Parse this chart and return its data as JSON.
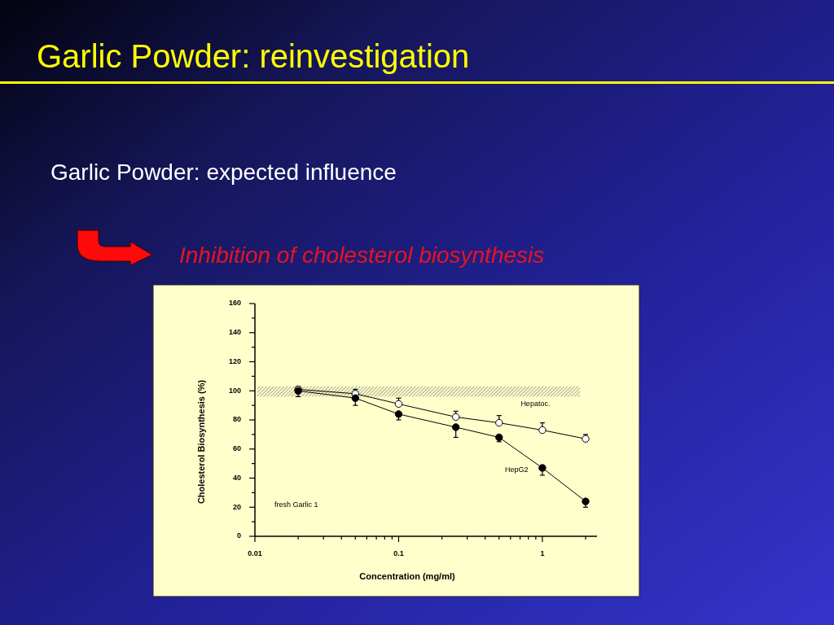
{
  "chart_data": {
    "type": "line",
    "title": "Garlic Powder: reinvestigation",
    "subtitle": "Garlic Powder: expected influence",
    "xlabel": "Concentration (mg/ml)",
    "ylabel": "Cholesterol Biosynthesis (%)",
    "annotations": [
      "Inhibition of cholesterol biosynthesis",
      "fresh Garlic 1"
    ],
    "x": [
      0.02,
      0.05,
      0.1,
      0.25,
      0.5,
      1,
      2
    ],
    "series": [
      {
        "name": "Hepatoc.",
        "color": "#ffffff",
        "values": [
          101,
          98,
          91,
          82,
          78,
          73,
          67
        ],
        "errors": [
          [
            101,
            103
          ],
          [
            98,
            101
          ],
          [
            91,
            95
          ],
          [
            82,
            86
          ],
          [
            78,
            83
          ],
          [
            73,
            78
          ],
          [
            67,
            70
          ]
        ]
      },
      {
        "name": "HepG2",
        "color": "#000000",
        "values": [
          100,
          95,
          84,
          75,
          68,
          47,
          24
        ],
        "errors": [
          [
            96,
            100
          ],
          [
            90,
            95
          ],
          [
            80,
            84
          ],
          [
            68,
            75
          ],
          [
            65,
            68
          ],
          [
            42,
            47
          ],
          [
            20,
            24
          ]
        ]
      }
    ],
    "log": "x",
    "xlim": [
      0.01,
      2.4
    ],
    "xticks": [
      0.01,
      {
        "value": 0.02,
        "label": null
      },
      {
        "value": 0.03,
        "label": null
      },
      {
        "value": 0.04,
        "label": null
      },
      {
        "value": 0.05,
        "label": null
      },
      {
        "value": 0.06,
        "label": null
      },
      {
        "value": 0.07,
        "label": null
      },
      {
        "value": 0.08,
        "label": null
      },
      {
        "value": 0.09,
        "label": null
      },
      0.1,
      {
        "value": 0.2,
        "label": null
      },
      {
        "value": 0.3,
        "label": null
      },
      {
        "value": 0.4,
        "label": null
      },
      {
        "value": 0.5,
        "label": null
      },
      {
        "value": 0.6,
        "label": null
      },
      {
        "value": 0.7,
        "label": null
      },
      {
        "value": 0.8,
        "label": null
      },
      {
        "value": 0.9,
        "label": null
      },
      1,
      {
        "value": 2,
        "label": null
      }
    ],
    "ylim": [
      0,
      160
    ],
    "yticks": [
      0,
      {
        "value": 10,
        "label": null
      },
      20,
      {
        "value": 30,
        "label": null
      },
      40,
      {
        "value": 50,
        "label": null
      },
      60,
      {
        "value": 70,
        "label": null
      },
      80,
      {
        "value": 90,
        "label": null
      },
      100,
      {
        "value": 110,
        "label": null
      },
      120,
      {
        "value": 130,
        "label": null
      },
      140,
      {
        "value": 150,
        "label": null
      },
      160
    ],
    "bands": [
      {
        "axis": "y",
        "from": 96,
        "to": 103,
        "color": "#555555"
      }
    ],
    "marker": "circle",
    "line_style": "solid"
  }
}
